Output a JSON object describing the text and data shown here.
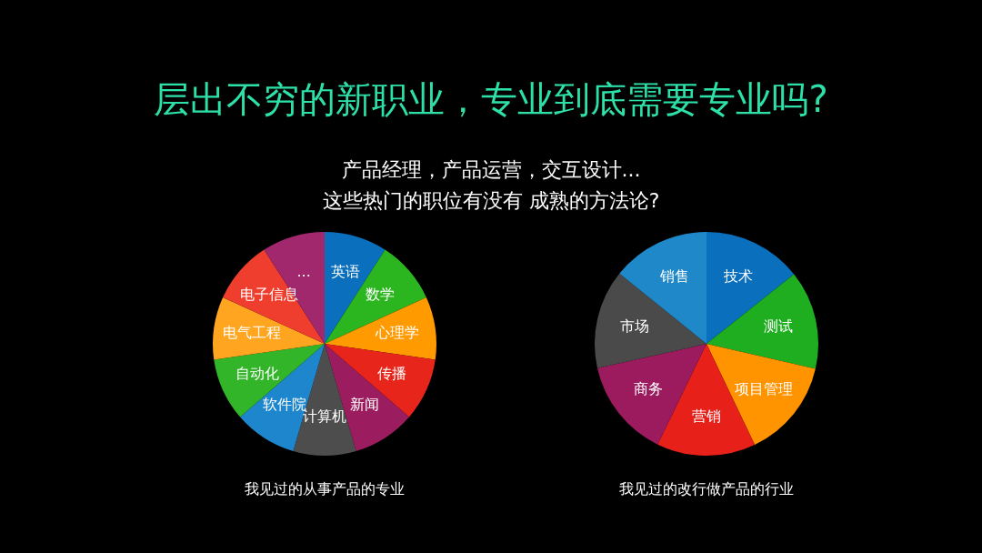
{
  "chart_data": [
    {
      "type": "other",
      "title": "层出不穷的新职业，专业到底需要专业吗?",
      "subtitle": "产品经理，产品运营，交互设计...\n这些热门的职位有没有  成熟的方法论?"
    },
    {
      "type": "pie",
      "title": "我见过的从事产品的专业",
      "categories": [
        "英语",
        "数学",
        "心理学",
        "传播",
        "新闻",
        "计算机",
        "软件院",
        "自动化",
        "电气工程",
        "电子信息",
        "..."
      ],
      "values": [
        9.09,
        9.09,
        9.09,
        9.09,
        9.09,
        9.09,
        9.09,
        9.09,
        9.09,
        9.09,
        9.1
      ],
      "colors": [
        "#0a6fbd",
        "#2bb51f",
        "#ff9a00",
        "#e8251a",
        "#9c1d5f",
        "#4d4d4d",
        "#1e86cc",
        "#33b52a",
        "#ffa51f",
        "#ef3e2d",
        "#a1286c"
      ]
    },
    {
      "type": "pie",
      "title": "我见过的改行做产品的行业",
      "categories": [
        "技术",
        "测试",
        "项目管理",
        "营销",
        "商务",
        "市场",
        "销售"
      ],
      "values": [
        14.3,
        14.3,
        14.3,
        14.3,
        14.3,
        14.3,
        14.2
      ],
      "colors": [
        "#0a6fbd",
        "#1fae1f",
        "#ff9400",
        "#e8201a",
        "#9b1b5e",
        "#4a4a4a",
        "#1e88c8"
      ]
    }
  ]
}
